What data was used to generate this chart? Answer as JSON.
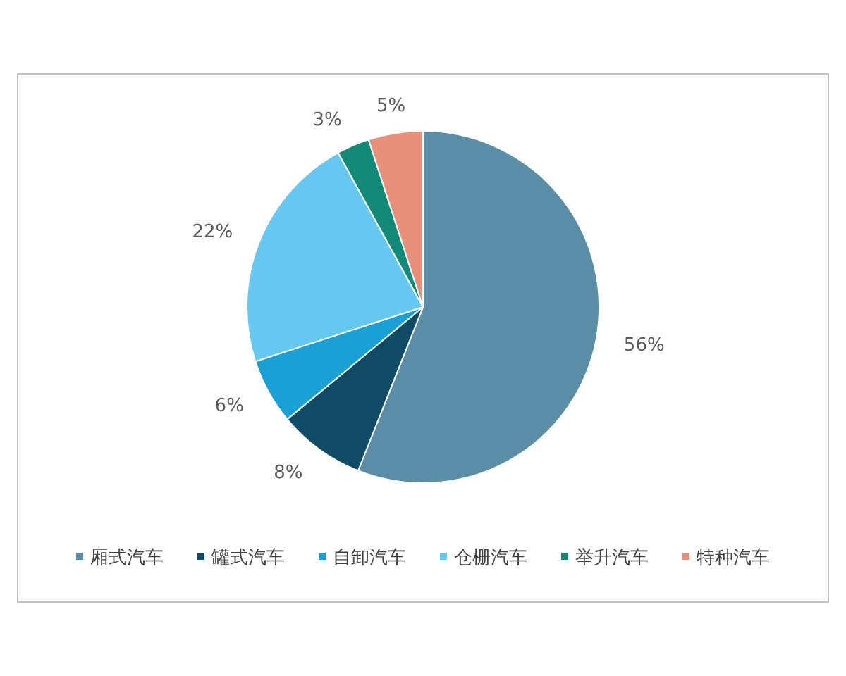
{
  "chart_data": {
    "type": "pie",
    "categories": [
      "厢式汽车",
      "罐式汽车",
      "自卸汽车",
      "仓栅汽车",
      "举升汽车",
      "特种汽车"
    ],
    "values": [
      56,
      8,
      6,
      22,
      3,
      5
    ],
    "value_labels": [
      "56%",
      "8%",
      "6%",
      "22%",
      "3%",
      "5%"
    ],
    "colors": [
      "#5b8ea6",
      "#0f4a66",
      "#1ba0d6",
      "#66c8f0",
      "#138a78",
      "#e8907a"
    ],
    "legend": "bottom"
  }
}
